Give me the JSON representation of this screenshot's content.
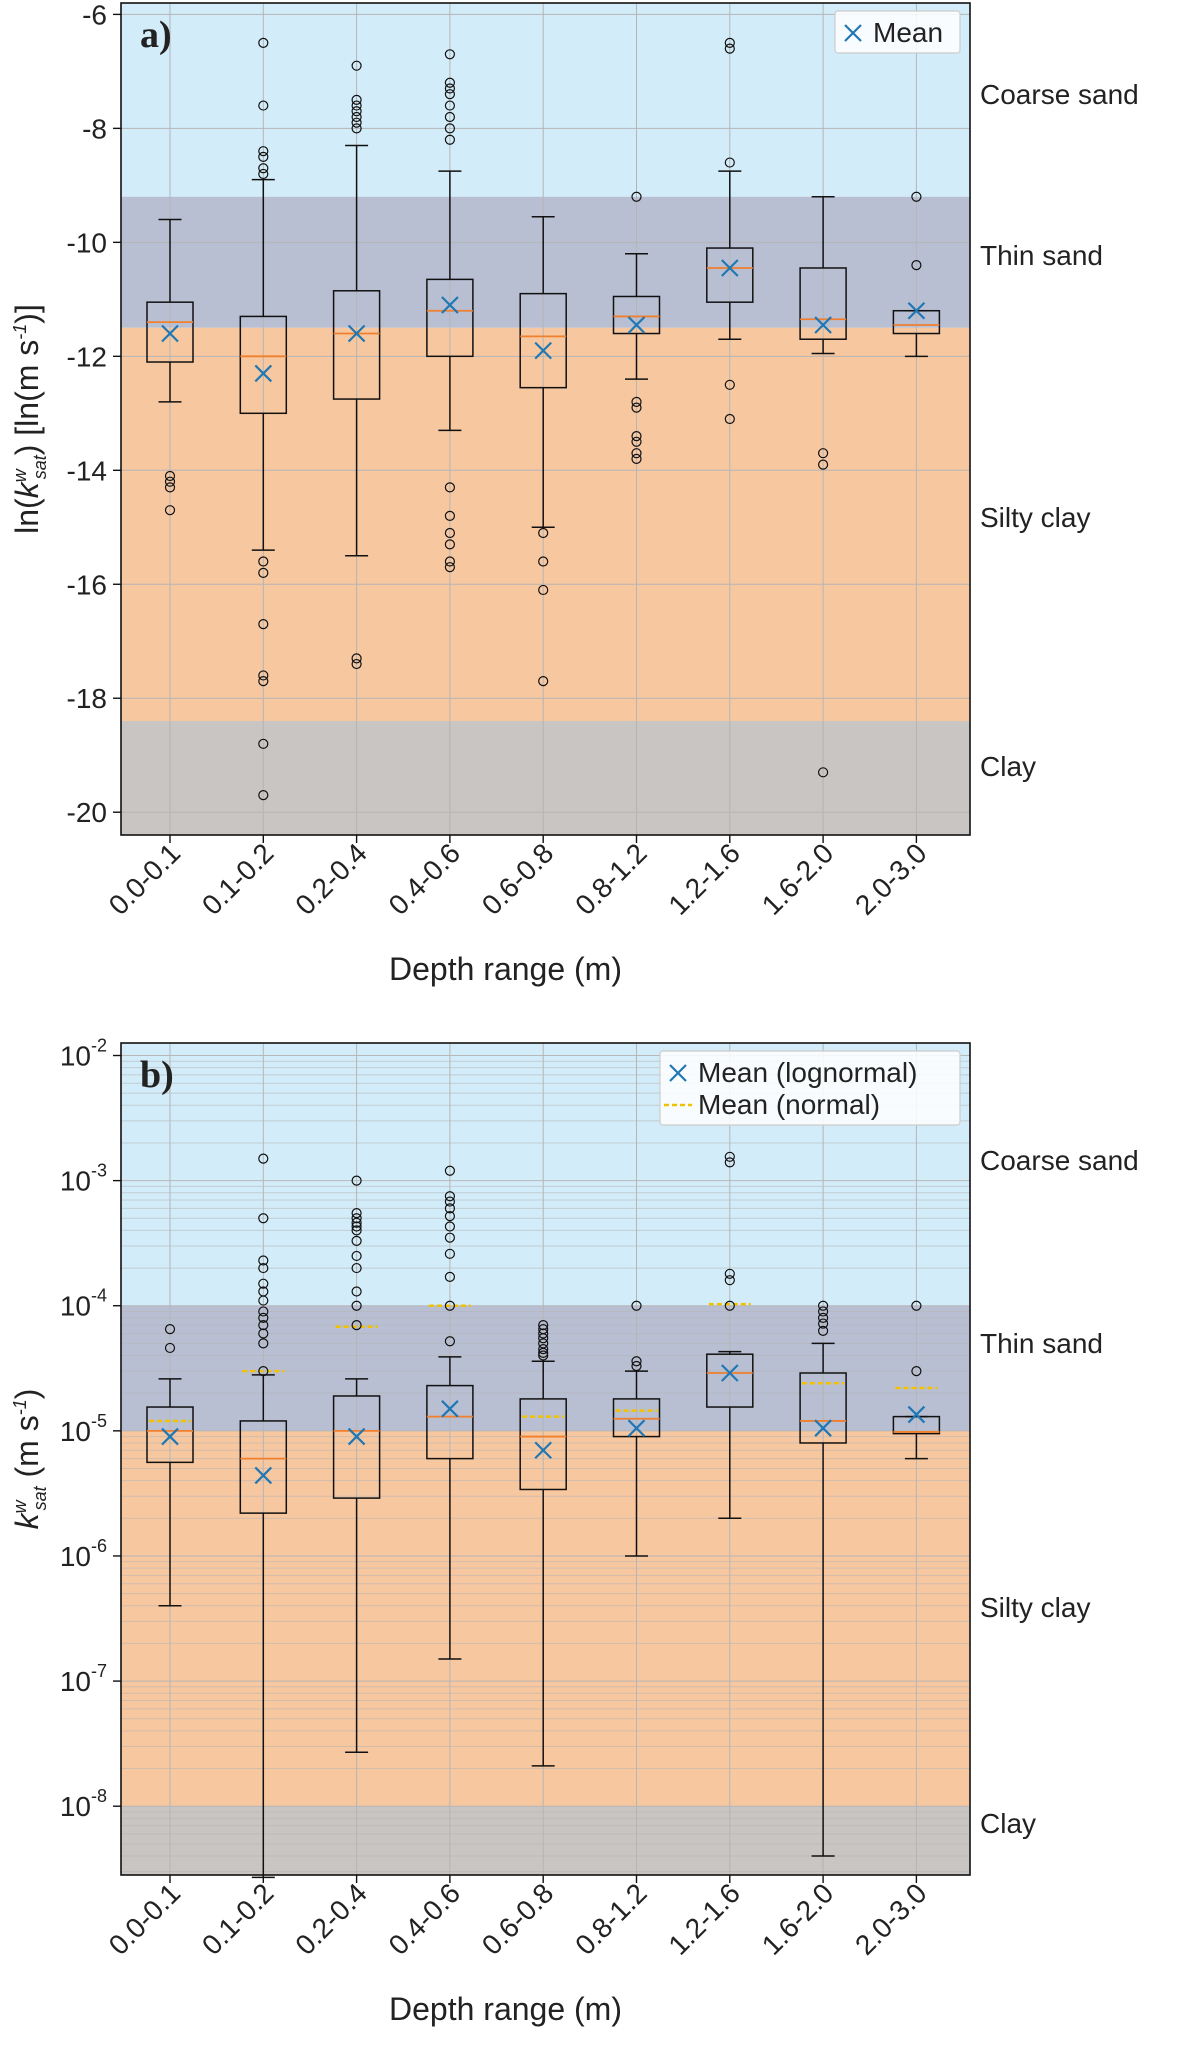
{
  "chart_data": [
    {
      "type": "box",
      "panel_label": "a)",
      "xlabel": "Depth range (m)",
      "ylabel": {
        "main": "ln(k",
        "sup": "w",
        "sub": "sat",
        "rest": ") [ln(m s",
        "unit_sup": "-1",
        "end": ")]"
      },
      "yscale": "linear",
      "ylim": [
        -20.4,
        -5.8
      ],
      "yticks": [
        -20,
        -18,
        -16,
        -14,
        -12,
        -10,
        -8,
        -6
      ],
      "categories": [
        "0.0-0.1",
        "0.1-0.2",
        "0.2-0.4",
        "0.4-0.6",
        "0.6-0.8",
        "0.8-1.2",
        "1.2-1.6",
        "1.6-2.0",
        "2.0-3.0"
      ],
      "bands": [
        {
          "label": "Coarse sand",
          "from": -9.2,
          "to": -5.8,
          "color": "#d3ecf9"
        },
        {
          "label": "Thin sand",
          "from": -11.5,
          "to": -9.2,
          "color": "#b8bfd3"
        },
        {
          "label": "Silty clay",
          "from": -18.4,
          "to": -11.5,
          "color": "#f7c7a0"
        },
        {
          "label": "Clay",
          "from": -20.4,
          "to": -18.4,
          "color": "#c8c5c3"
        }
      ],
      "legend": [
        {
          "marker": "x",
          "label": "Mean"
        }
      ],
      "boxes": [
        {
          "wlo": -12.8,
          "q1": -12.1,
          "median": -11.4,
          "q3": -11.05,
          "whi": -9.6,
          "mean": -11.6,
          "outliers": [
            -14.1,
            -14.2,
            -14.3,
            -14.7
          ]
        },
        {
          "wlo": -15.4,
          "q1": -13.0,
          "median": -12.0,
          "q3": -11.3,
          "whi": -8.9,
          "mean": -12.3,
          "outliers": [
            -6.5,
            -7.6,
            -8.4,
            -8.5,
            -8.7,
            -8.8,
            -15.6,
            -15.8,
            -16.7,
            -17.6,
            -17.7,
            -18.8,
            -19.7
          ]
        },
        {
          "wlo": -15.5,
          "q1": -12.75,
          "median": -11.6,
          "q3": -10.85,
          "whi": -8.3,
          "mean": -11.6,
          "outliers": [
            -6.9,
            -7.5,
            -7.6,
            -7.7,
            -7.8,
            -7.9,
            -8.0,
            -17.3,
            -17.4
          ]
        },
        {
          "wlo": -13.3,
          "q1": -12.0,
          "median": -11.2,
          "q3": -10.65,
          "whi": -8.75,
          "mean": -11.1,
          "outliers": [
            -6.7,
            -7.2,
            -7.3,
            -7.4,
            -7.6,
            -7.8,
            -8.0,
            -8.2,
            -14.3,
            -14.8,
            -15.1,
            -15.3,
            -15.6,
            -15.7
          ]
        },
        {
          "wlo": -15.0,
          "q1": -12.55,
          "median": -11.65,
          "q3": -10.9,
          "whi": -9.55,
          "mean": -11.9,
          "outliers": [
            -15.1,
            -15.6,
            -16.1,
            -17.7
          ]
        },
        {
          "wlo": -12.4,
          "q1": -11.6,
          "median": -11.3,
          "q3": -10.95,
          "whi": -10.2,
          "mean": -11.45,
          "outliers": [
            -9.2,
            -12.8,
            -12.9,
            -13.4,
            -13.5,
            -13.7,
            -13.8
          ]
        },
        {
          "wlo": -11.7,
          "q1": -11.05,
          "median": -10.45,
          "q3": -10.1,
          "whi": -8.75,
          "mean": -10.45,
          "outliers": [
            -6.5,
            -6.6,
            -8.6,
            -12.5,
            -13.1
          ]
        },
        {
          "wlo": -11.95,
          "q1": -11.7,
          "median": -11.35,
          "q3": -10.45,
          "whi": -9.2,
          "mean": -11.45,
          "outliers": [
            -13.7,
            -13.9,
            -19.3
          ]
        },
        {
          "wlo": -12.0,
          "q1": -11.6,
          "median": -11.45,
          "q3": -11.2,
          "whi": -11.2,
          "mean": -11.2,
          "outliers": [
            -9.2,
            -10.4
          ]
        }
      ]
    },
    {
      "type": "box",
      "panel_label": "b)",
      "xlabel": "Depth range (m)",
      "ylabel": {
        "main": "k",
        "sup": "w",
        "sub": "sat",
        "rest": " (m s",
        "unit_sup": "-1",
        "end": ")"
      },
      "yscale": "log",
      "ylim_exp": [
        -8.55,
        -1.9
      ],
      "ytick_exps": [
        "-8",
        "-7",
        "-6",
        "-5",
        "-4",
        "-3",
        "-2"
      ],
      "categories": [
        "0.0-0.1",
        "0.1-0.2",
        "0.2-0.4",
        "0.4-0.6",
        "0.6-0.8",
        "0.8-1.2",
        "1.2-1.6",
        "1.6-2.0",
        "2.0-3.0"
      ],
      "bands": [
        {
          "label": "Coarse sand",
          "from_exp": -4.0,
          "to_exp": -1.9,
          "color": "#d3ecf9"
        },
        {
          "label": "Thin sand",
          "from_exp": -5.0,
          "to_exp": -4.0,
          "color": "#b8bfd3"
        },
        {
          "label": "Silty clay",
          "from_exp": -8.0,
          "to_exp": -5.0,
          "color": "#f7c7a0"
        },
        {
          "label": "Clay",
          "from_exp": -8.55,
          "to_exp": -8.0,
          "color": "#c8c5c3"
        }
      ],
      "legend": [
        {
          "marker": "x",
          "label": "Mean (lognormal)"
        },
        {
          "marker": "dash",
          "label": "Mean (normal)"
        }
      ],
      "boxes": [
        {
          "wlo": 4e-07,
          "q1": 5.6e-06,
          "median": 1e-05,
          "q3": 1.55e-05,
          "whi": 2.6e-05,
          "mean": 9e-06,
          "mean_normal": 1.2e-05,
          "outliers": [
            4.6e-05,
            6.5e-05
          ]
        },
        {
          "wlo": 2.7e-09,
          "q1": 2.2e-06,
          "median": 6e-06,
          "q3": 1.2e-05,
          "whi": 2.8e-05,
          "mean": 4.4e-06,
          "mean_normal": 3e-05,
          "outliers": [
            3e-05,
            5e-05,
            6e-05,
            7e-05,
            8e-05,
            9e-05,
            0.00011,
            0.00013,
            0.00015,
            0.0002,
            0.00023,
            0.0005,
            0.0015
          ]
        },
        {
          "wlo": 2.7e-08,
          "q1": 2.9e-06,
          "median": 1e-05,
          "q3": 1.9e-05,
          "whi": 2.6e-05,
          "mean": 9e-06,
          "mean_normal": 6.8e-05,
          "outliers": [
            7e-05,
            0.0001,
            0.00013,
            0.0002,
            0.00025,
            0.00033,
            0.0004,
            0.00043,
            0.00046,
            0.0005,
            0.00055,
            0.001
          ]
        },
        {
          "wlo": 1.5e-07,
          "q1": 6e-06,
          "median": 1.3e-05,
          "q3": 2.3e-05,
          "whi": 3.9e-05,
          "mean": 1.5e-05,
          "mean_normal": 0.0001,
          "outliers": [
            5.2e-05,
            0.0001,
            0.00017,
            0.00026,
            0.00035,
            0.00043,
            0.00052,
            0.0006,
            0.00068,
            0.00075,
            0.0012
          ]
        },
        {
          "wlo": 2.1e-08,
          "q1": 3.4e-06,
          "median": 9e-06,
          "q3": 1.8e-05,
          "whi": 3.6e-05,
          "mean": 7e-06,
          "mean_normal": 1.3e-05,
          "outliers": [
            4e-05,
            4.2e-05,
            4.5e-05,
            5e-05,
            5.5e-05,
            6e-05,
            6.5e-05,
            7e-05
          ]
        },
        {
          "wlo": 1e-06,
          "q1": 9e-06,
          "median": 1.25e-05,
          "q3": 1.8e-05,
          "whi": 3e-05,
          "mean": 1.05e-05,
          "mean_normal": 1.45e-05,
          "outliers": [
            3.3e-05,
            3.6e-05,
            0.0001
          ]
        },
        {
          "wlo": 2e-06,
          "q1": 1.55e-05,
          "median": 2.9e-05,
          "q3": 4.1e-05,
          "whi": 4.3e-05,
          "mean": 2.9e-05,
          "mean_normal": 0.000103,
          "outliers": [
            0.0001,
            0.00016,
            0.00018,
            0.0014,
            0.00155
          ]
        },
        {
          "wlo": 4e-09,
          "q1": 8e-06,
          "median": 1.2e-05,
          "q3": 2.9e-05,
          "whi": 5e-05,
          "mean": 1.05e-05,
          "mean_normal": 2.4e-05,
          "outliers": [
            6.3e-05,
            7.2e-05,
            8e-05,
            9e-05,
            0.0001
          ]
        },
        {
          "wlo": 6e-06,
          "q1": 9.5e-06,
          "median": 9.8e-06,
          "q3": 1.3e-05,
          "whi": 1.3e-05,
          "mean": 1.35e-05,
          "mean_normal": 2.2e-05,
          "outliers": [
            3e-05,
            0.0001
          ]
        }
      ]
    }
  ]
}
